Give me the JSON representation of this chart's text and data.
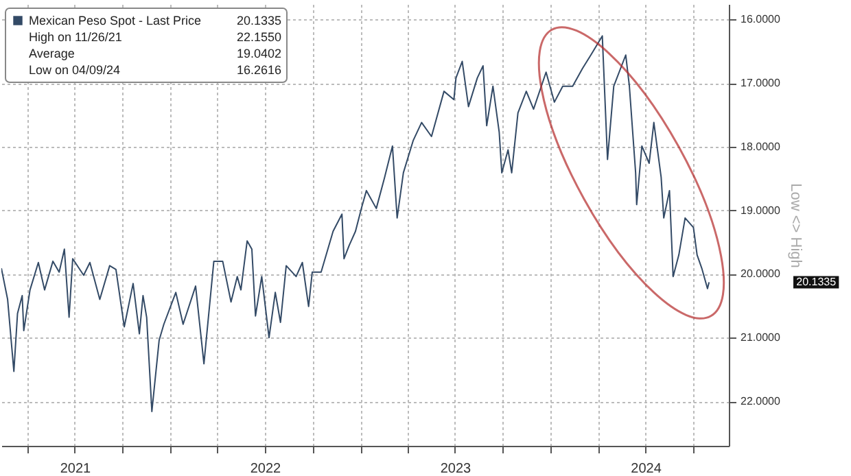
{
  "chart_data": {
    "type": "line",
    "ylabel": "Low <> High",
    "x": [
      "2021-02-10",
      "2021-02-22",
      "2021-03-06",
      "2021-03-13",
      "2021-03-22",
      "2021-03-25",
      "2021-04-06",
      "2021-04-22",
      "2021-05-04",
      "2021-05-20",
      "2021-06-01",
      "2021-06-11",
      "2021-06-20",
      "2021-06-27",
      "2021-07-18",
      "2021-07-30",
      "2021-08-18",
      "2021-09-06",
      "2021-09-18",
      "2021-10-04",
      "2021-10-21",
      "2021-11-02",
      "2021-11-09",
      "2021-11-16",
      "2021-11-26",
      "2021-12-10",
      "2021-12-19",
      "2022-01-11",
      "2022-01-25",
      "2022-02-18",
      "2022-03-06",
      "2022-03-25",
      "2022-04-11",
      "2022-04-27",
      "2022-05-09",
      "2022-05-16",
      "2022-05-28",
      "2022-06-06",
      "2022-06-13",
      "2022-06-25",
      "2022-07-09",
      "2022-07-21",
      "2022-07-31",
      "2022-08-11",
      "2022-08-30",
      "2022-09-11",
      "2022-09-23",
      "2022-09-30",
      "2022-10-17",
      "2022-11-09",
      "2022-11-26",
      "2022-11-30",
      "2022-12-10",
      "2022-12-22",
      "2023-01-03",
      "2023-01-12",
      "2023-01-31",
      "2023-02-16",
      "2023-03-03",
      "2023-03-12",
      "2023-03-24",
      "2023-04-12",
      "2023-04-28",
      "2023-05-17",
      "2023-06-10",
      "2023-06-29",
      "2023-07-03",
      "2023-07-15",
      "2023-07-27",
      "2023-08-13",
      "2023-08-24",
      "2023-08-31",
      "2023-09-12",
      "2023-09-24",
      "2023-09-29",
      "2023-10-11",
      "2023-10-18",
      "2023-10-30",
      "2023-11-15",
      "2023-11-29",
      "2023-12-23",
      "2024-01-08",
      "2024-01-24",
      "2024-02-12",
      "2024-03-02",
      "2024-03-18",
      "2024-04-09",
      "2024-04-19",
      "2024-05-01",
      "2024-05-24",
      "2024-05-31",
      "2024-06-12",
      "2024-06-14",
      "2024-06-24",
      "2024-07-08",
      "2024-07-17",
      "2024-07-31",
      "2024-08-05",
      "2024-08-16",
      "2024-08-23",
      "2024-09-03",
      "2024-09-15",
      "2024-10-01",
      "2024-10-08",
      "2024-10-17",
      "2024-10-28",
      "2024-10-31"
    ],
    "series": [
      {
        "name": "Mexican Peso Spot - Last Price",
        "color": "#334a66",
        "values": [
          19.91,
          20.4,
          21.53,
          20.62,
          20.34,
          20.89,
          20.25,
          19.82,
          20.25,
          19.8,
          19.97,
          19.61,
          20.68,
          19.76,
          20.02,
          19.82,
          20.4,
          19.87,
          19.93,
          20.83,
          20.15,
          20.94,
          20.34,
          20.68,
          22.16,
          21.04,
          20.79,
          20.29,
          20.79,
          20.19,
          21.41,
          19.8,
          19.8,
          20.44,
          20.04,
          20.25,
          19.48,
          19.61,
          20.66,
          20.04,
          21.0,
          20.29,
          20.76,
          19.87,
          20.04,
          19.82,
          20.51,
          19.97,
          19.97,
          19.33,
          19.06,
          19.76,
          19.55,
          19.33,
          18.95,
          18.69,
          18.97,
          18.48,
          17.99,
          19.12,
          18.41,
          17.9,
          17.62,
          17.84,
          17.13,
          17.26,
          16.92,
          16.66,
          17.37,
          16.92,
          16.73,
          17.67,
          17.05,
          17.77,
          18.41,
          18.05,
          18.41,
          17.47,
          17.13,
          17.41,
          16.83,
          17.3,
          17.05,
          17.05,
          16.77,
          16.56,
          16.26,
          18.2,
          17.05,
          16.56,
          17.05,
          18.41,
          18.91,
          17.99,
          18.26,
          17.62,
          18.48,
          19.12,
          18.69,
          20.04,
          19.7,
          19.12,
          19.27,
          19.7,
          19.91,
          20.23,
          20.13
        ]
      }
    ],
    "ylim": [
      22.7,
      15.76
    ],
    "yticks": [
      {
        "value": 16,
        "label": "16.0000"
      },
      {
        "value": 17,
        "label": "17.0000"
      },
      {
        "value": 18,
        "label": "18.0000"
      },
      {
        "value": 19,
        "label": "19.0000"
      },
      {
        "value": 20,
        "label": "20.0000"
      },
      {
        "value": 21,
        "label": "21.0000"
      },
      {
        "value": 22,
        "label": "22.0000"
      }
    ],
    "xlim": [
      "2021-02-10",
      "2024-12-08"
    ],
    "xticks": [
      {
        "value": "2021-04-01",
        "label": null
      },
      {
        "value": "2021-07-01",
        "label": "2021"
      },
      {
        "value": "2021-10-01",
        "label": null
      },
      {
        "value": "2022-01-01",
        "label": null
      },
      {
        "value": "2022-04-01",
        "label": null
      },
      {
        "value": "2022-07-01",
        "label": "2022"
      },
      {
        "value": "2022-10-01",
        "label": null
      },
      {
        "value": "2023-01-01",
        "label": null
      },
      {
        "value": "2023-04-01",
        "label": null
      },
      {
        "value": "2023-07-01",
        "label": "2023"
      },
      {
        "value": "2023-10-01",
        "label": null
      },
      {
        "value": "2024-01-01",
        "label": null
      },
      {
        "value": "2024-04-01",
        "label": null
      },
      {
        "value": "2024-07-01",
        "label": "2024"
      },
      {
        "value": "2024-10-01",
        "label": null
      }
    ],
    "annotations": [
      "20.1335",
      "20.1335",
      "High on 11/26/21",
      "22.1550",
      "Average",
      "19.0402",
      "Low on 04/09/24",
      "16.2616"
    ],
    "grid": true,
    "legend": "top left"
  }
}
